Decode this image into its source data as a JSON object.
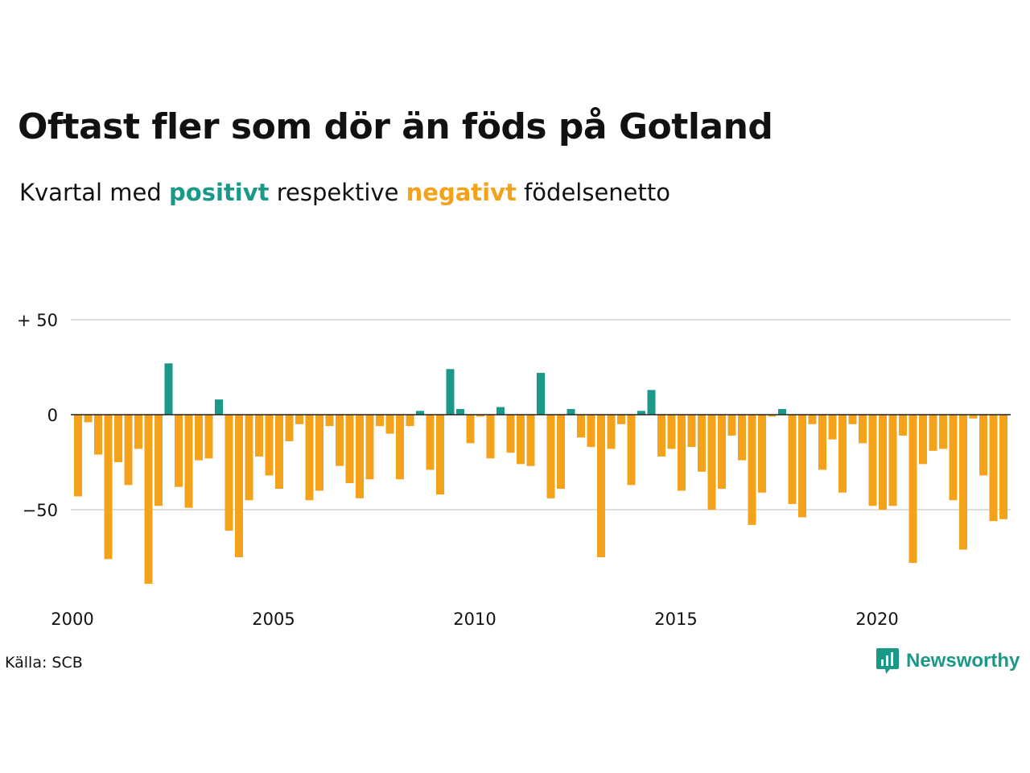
{
  "title": "Oftast fler som dör än föds på Gotland",
  "subtitle": {
    "prefix": "Kvartal med ",
    "positive": "positivt",
    "middle": " respektive ",
    "negative": "negativt",
    "suffix": " födelsenetto"
  },
  "colors": {
    "positive": "#1a9988",
    "negative": "#f5a21b",
    "grid": "#dddddd",
    "zero_line": "#222222"
  },
  "source": "Källa: SCB",
  "brand": {
    "name": "Newsworthy",
    "icon": "newsworthy-chat-chart-icon"
  },
  "chart_data": {
    "type": "bar",
    "x_start": "2000 Q1",
    "frequency": "quarterly",
    "xticks": [
      {
        "label": "2000",
        "year": 2000
      },
      {
        "label": "2005",
        "year": 2005
      },
      {
        "label": "2010",
        "year": 2010
      },
      {
        "label": "2015",
        "year": 2015
      },
      {
        "label": "2020",
        "year": 2020
      }
    ],
    "yticks": [
      {
        "label": "+ 50",
        "value": 50
      },
      {
        "label": "0",
        "value": 0
      },
      {
        "label": "−50",
        "value": -50
      }
    ],
    "ylim": [
      -95,
      55
    ],
    "values": [
      -43,
      -4,
      -21,
      -76,
      -25,
      -37,
      -18,
      -89,
      -48,
      27,
      -38,
      -49,
      -24,
      -23,
      8,
      -61,
      -75,
      -45,
      -22,
      -32,
      -39,
      -14,
      -5,
      -45,
      -40,
      -6,
      -27,
      -36,
      -44,
      -34,
      -6,
      -10,
      -34,
      -6,
      2,
      -29,
      -42,
      24,
      3,
      -15,
      -1,
      -23,
      4,
      -20,
      -26,
      -27,
      22,
      -44,
      -39,
      3,
      -12,
      -17,
      -75,
      -18,
      -5,
      -37,
      2,
      13,
      -22,
      -18,
      -40,
      -17,
      -30,
      -50,
      -39,
      -11,
      -24,
      -58,
      -41,
      -1,
      3,
      -47,
      -54,
      -5,
      -29,
      -13,
      -41,
      -5,
      -15,
      -48,
      -50,
      -48,
      -11,
      -78,
      -26,
      -19,
      -18,
      -45,
      -71,
      -2,
      -32,
      -56,
      -55
    ]
  }
}
